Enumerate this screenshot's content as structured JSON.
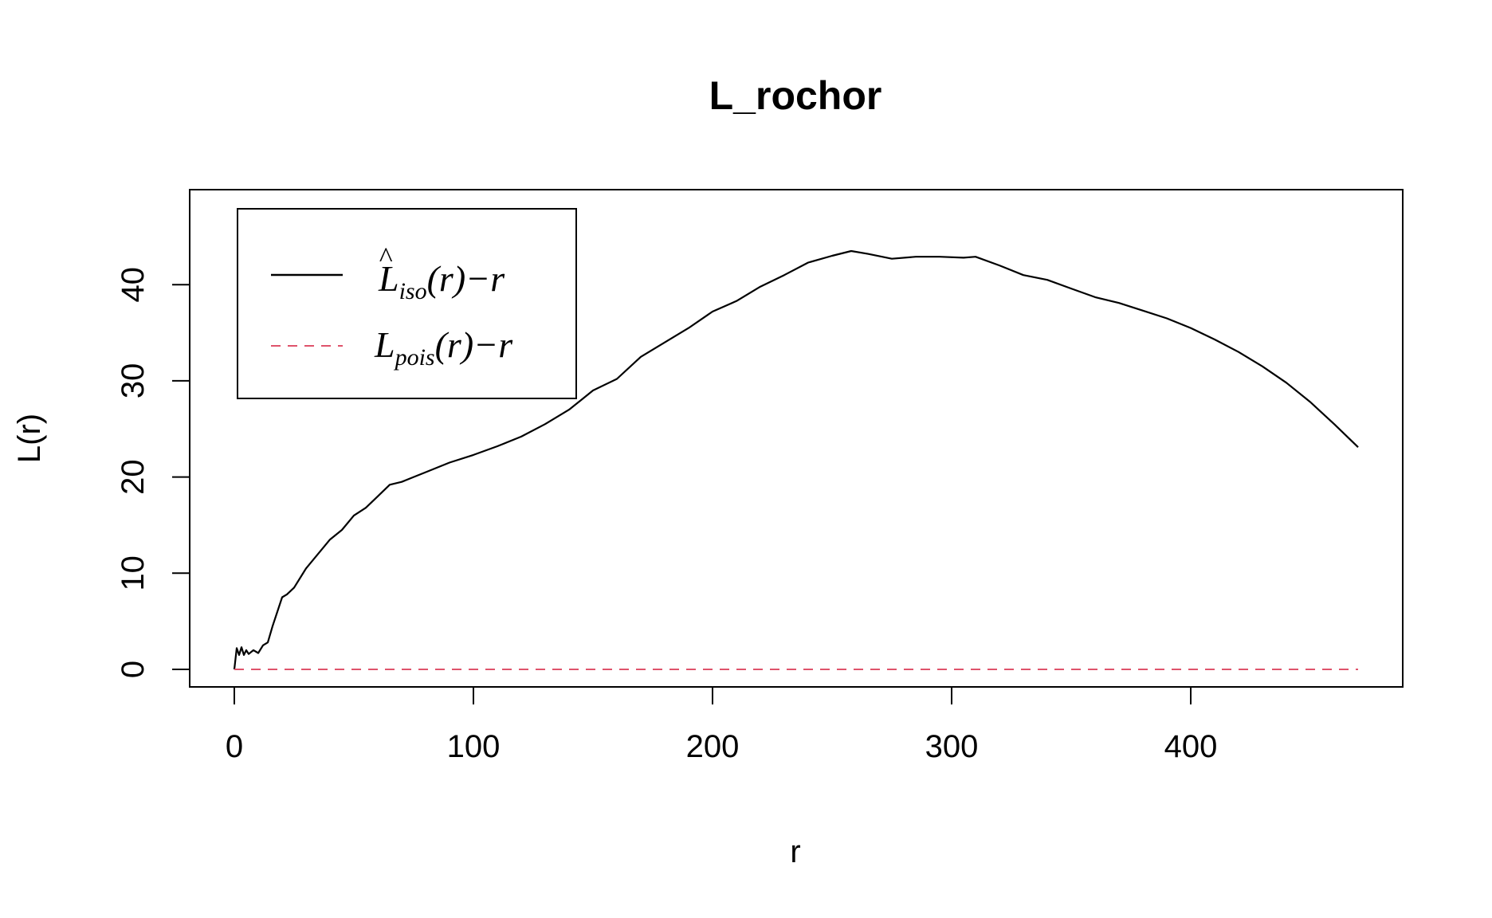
{
  "chart_data": {
    "type": "line",
    "title": "L_rochor",
    "xlabel": "r",
    "ylabel": "L(r)",
    "xlim": [
      0,
      470
    ],
    "ylim": [
      0,
      43.5
    ],
    "x_ticks": [
      0,
      100,
      200,
      300,
      400
    ],
    "y_ticks": [
      0,
      10,
      20,
      30,
      40
    ],
    "grid": false,
    "legend": {
      "position": "top-left",
      "entries": [
        {
          "series": "iso",
          "main": "L",
          "hat": "^",
          "sub": "iso",
          "tail": "(r)−r",
          "line_style": "solid",
          "color": "#000000"
        },
        {
          "series": "pois",
          "main": "L",
          "hat": "",
          "sub": "pois",
          "tail": "(r)−r",
          "line_style": "dashed",
          "color": "#DF536B"
        }
      ]
    },
    "series": [
      {
        "id": "iso",
        "color": "#000000",
        "line_style": "solid",
        "x": [
          0,
          1,
          2,
          3,
          4,
          5,
          6,
          8,
          10,
          12,
          14,
          16,
          18,
          20,
          22,
          25,
          30,
          35,
          40,
          45,
          50,
          55,
          60,
          65,
          70,
          75,
          80,
          90,
          100,
          110,
          120,
          130,
          140,
          145,
          150,
          160,
          170,
          180,
          190,
          200,
          210,
          220,
          230,
          240,
          250,
          258,
          265,
          275,
          285,
          295,
          305,
          310,
          320,
          330,
          340,
          350,
          360,
          370,
          380,
          390,
          400,
          410,
          420,
          430,
          440,
          450,
          460,
          470
        ],
        "y": [
          0,
          2.2,
          1.5,
          2.3,
          1.5,
          2.0,
          1.6,
          2.0,
          1.7,
          2.5,
          2.8,
          4.5,
          6.0,
          7.5,
          7.8,
          8.5,
          10.5,
          12.0,
          13.5,
          14.5,
          16.0,
          16.8,
          18.0,
          19.2,
          19.5,
          20.0,
          20.5,
          21.5,
          22.3,
          23.2,
          24.2,
          25.5,
          27.0,
          28.0,
          29.0,
          30.2,
          32.5,
          34.0,
          35.5,
          37.2,
          38.3,
          39.8,
          41.0,
          42.3,
          43.0,
          43.5,
          43.2,
          42.7,
          42.9,
          42.9,
          42.8,
          42.9,
          42.0,
          41.0,
          40.5,
          39.6,
          38.7,
          38.1,
          37.3,
          36.5,
          35.5,
          34.3,
          33.0,
          31.5,
          29.8,
          27.8,
          25.5,
          23.1
        ]
      },
      {
        "id": "pois",
        "color": "#DF536B",
        "line_style": "dashed",
        "x": [
          0,
          470
        ],
        "y": [
          0,
          0
        ]
      }
    ]
  }
}
